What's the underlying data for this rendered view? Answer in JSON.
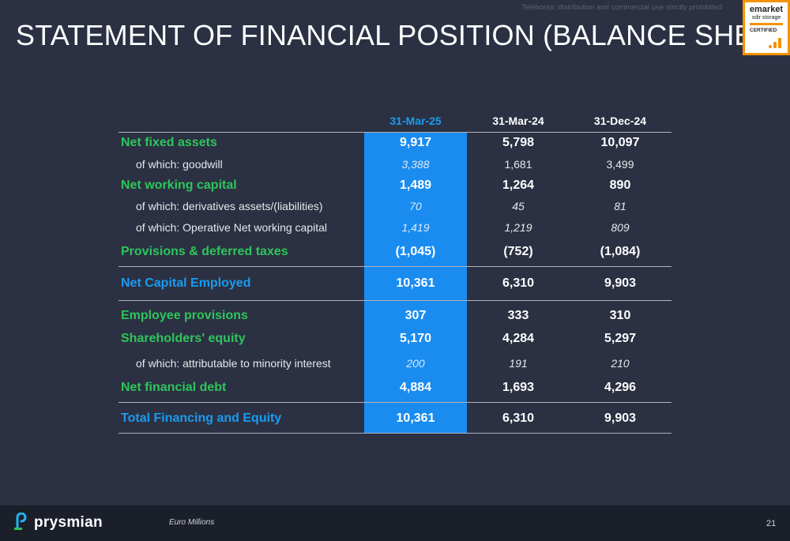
{
  "watermark": "Teleborsa: distribution and commercial use strictly prohibited",
  "title": "STATEMENT OF FINANCIAL POSITION (BALANCE SHEET)",
  "badge": {
    "line1": "emarket",
    "line2": "sdir storage",
    "line3": "CERTIFIED"
  },
  "colors": {
    "background": "#2b3142",
    "highlight": "#1a8cf0",
    "green": "#2ec55b",
    "blue": "#1a9bf0",
    "badge": "#f39200"
  },
  "table": {
    "headers": [
      "31-Mar-25",
      "31-Mar-24",
      "31-Dec-24"
    ],
    "rows": [
      {
        "label": "Net fixed assets",
        "values": [
          "9,917",
          "5,798",
          "10,097"
        ]
      },
      {
        "label": "of which: goodwill",
        "values": [
          "3,388",
          "1,681",
          "3,499"
        ]
      },
      {
        "label": "Net working capital",
        "values": [
          "1,489",
          "1,264",
          "890"
        ]
      },
      {
        "label": "of which: derivatives assets/(liabilities)",
        "values": [
          "70",
          "45",
          "81"
        ]
      },
      {
        "label": "of which: Operative Net working capital",
        "values": [
          "1,419",
          "1,219",
          "809"
        ]
      },
      {
        "label": "Provisions & deferred taxes",
        "values": [
          "(1,045)",
          "(752)",
          "(1,084)"
        ]
      },
      {
        "label": "Net Capital Employed",
        "values": [
          "10,361",
          "6,310",
          "9,903"
        ]
      },
      {
        "label": "Employee provisions",
        "values": [
          "307",
          "333",
          "310"
        ]
      },
      {
        "label": "Shareholders' equity",
        "values": [
          "5,170",
          "4,284",
          "5,297"
        ]
      },
      {
        "label": "of which: attributable to minority interest",
        "values": [
          "200",
          "191",
          "210"
        ]
      },
      {
        "label": "Net financial debt",
        "values": [
          "4,884",
          "1,693",
          "4,296"
        ]
      },
      {
        "label": "Total Financing and Equity",
        "values": [
          "10,361",
          "6,310",
          "9,903"
        ]
      }
    ]
  },
  "footer": {
    "logo_text": "prysmian",
    "note": "Euro Millions",
    "page": "21"
  }
}
